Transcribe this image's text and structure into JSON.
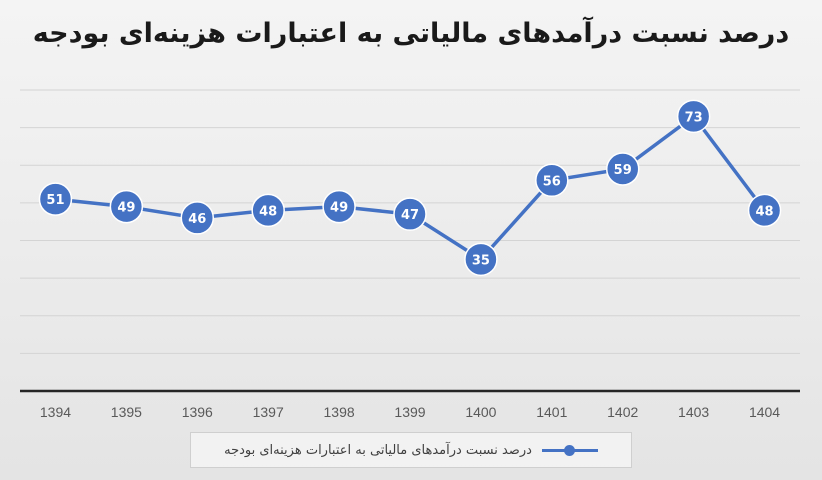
{
  "chart_data": {
    "type": "line",
    "title": "درصد نسبت درآمدهای مالیاتی به اعتبارات هزینه‌ای بودجه",
    "categories": [
      "1394",
      "1395",
      "1396",
      "1397",
      "1398",
      "1399",
      "1400",
      "1401",
      "1402",
      "1403",
      "1404"
    ],
    "series": [
      {
        "name": "درصد نسبت درآمدهای مالیاتی به اعتبارات هزینه‌ای بودجه",
        "values": [
          51,
          49,
          46,
          48,
          49,
          47,
          35,
          56,
          59,
          73,
          48
        ],
        "color": "#4472c4"
      }
    ],
    "ylim": [
      0,
      80
    ],
    "grid": true,
    "legend": "bottom",
    "data_labels": true
  }
}
